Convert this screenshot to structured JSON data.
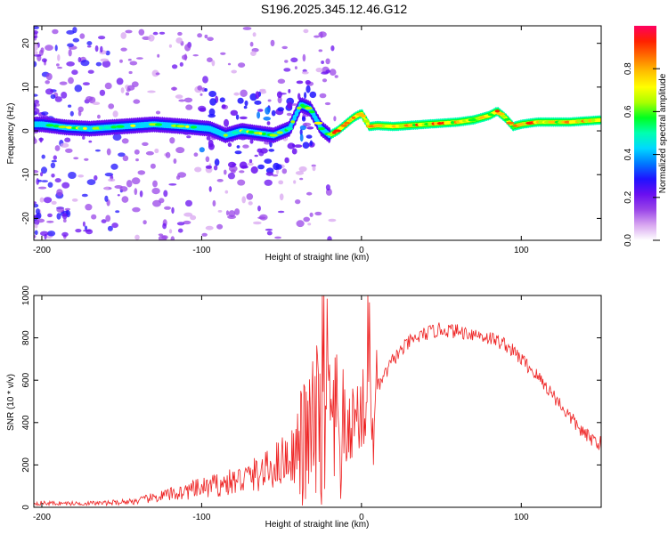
{
  "title": "S196.2025.345.12.46.G12",
  "chart_data": [
    {
      "type": "heatmap",
      "name": "spectrogram",
      "xlabel": "Height of straight line (km)",
      "ylabel": "Frequency (Hz)",
      "xlim": [
        -205,
        150
      ],
      "ylim": [
        -25,
        24
      ],
      "xticks": [
        -200,
        -100,
        0,
        100
      ],
      "yticks": [
        -20,
        -10,
        0,
        10,
        20
      ],
      "colorbar": {
        "label": "Normalized spectral amplitude",
        "range": [
          0.0,
          1.0
        ],
        "ticks": [
          0.0,
          0.2,
          0.4,
          0.6,
          0.8
        ],
        "colors": [
          "#ffffff",
          "#d8a6f0",
          "#9a45e8",
          "#6a0ff0",
          "#1f12ff",
          "#0077ff",
          "#00d8ff",
          "#00ffb0",
          "#00ff20",
          "#aaff00",
          "#ffff00",
          "#ffc000",
          "#ff7000",
          "#ff2000",
          "#ff0060"
        ]
      },
      "ridge": {
        "x": [
          -200,
          -185,
          -170,
          -150,
          -130,
          -110,
          -95,
          -85,
          -75,
          -65,
          -55,
          -45,
          -38,
          -32,
          -25,
          -20,
          -15,
          -10,
          -5,
          0,
          5,
          10,
          20,
          40,
          60,
          70,
          80,
          85,
          90,
          95,
          100,
          110,
          130,
          150
        ],
        "y": [
          1.5,
          0.8,
          0.5,
          1.0,
          1.5,
          1.0,
          0.5,
          -1.0,
          0.0,
          -0.5,
          -1.0,
          0.5,
          6.0,
          5.0,
          0.5,
          -1.0,
          0.0,
          1.5,
          3.0,
          4.0,
          1.0,
          1.2,
          1.0,
          1.5,
          2.0,
          2.5,
          3.5,
          4.5,
          3.0,
          1.0,
          1.5,
          2.0,
          2.0,
          2.5
        ]
      }
    },
    {
      "type": "line",
      "name": "snr",
      "xlabel": "Height of straight line (km)",
      "ylabel": "SNR (10 * v/v)",
      "xlim": [
        -205,
        150
      ],
      "ylim": [
        0,
        1000
      ],
      "xticks": [
        -200,
        -100,
        0,
        100
      ],
      "yticks": [
        0,
        200,
        400,
        600,
        800,
        1000
      ],
      "color": "#ee2222",
      "envelope": {
        "x": [
          -205,
          -180,
          -160,
          -140,
          -120,
          -100,
          -80,
          -60,
          -50,
          -40,
          -35,
          -30,
          -25,
          -20,
          -15,
          -10,
          -5,
          0,
          5,
          10,
          20,
          30,
          40,
          50,
          60,
          70,
          80,
          90,
          100,
          110,
          120,
          130,
          140,
          150
        ],
        "y": [
          20,
          18,
          20,
          30,
          60,
          90,
          120,
          170,
          220,
          260,
          300,
          350,
          400,
          380,
          350,
          300,
          420,
          450,
          480,
          560,
          700,
          780,
          820,
          840,
          830,
          820,
          800,
          770,
          700,
          620,
          530,
          430,
          340,
          300
        ]
      }
    }
  ]
}
